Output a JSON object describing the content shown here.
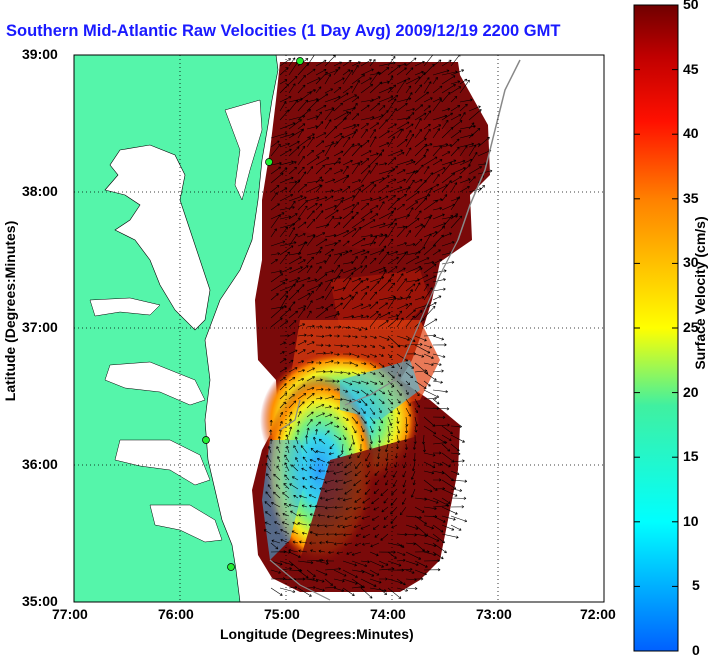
{
  "title": "Southern Mid-Atlantic Raw Velocities (1 Day Avg) 2009/12/19 2200 GMT",
  "chart_data": {
    "type": "heatmap",
    "title": "Southern Mid-Atlantic Raw Velocities (1 Day Avg) 2009/12/19 2200 GMT",
    "xlabel": "Longitude (Degrees:Minutes)",
    "ylabel": "Latitude (Degrees:Minutes)",
    "xlim": [
      -77,
      -72
    ],
    "ylim": [
      35,
      39
    ],
    "xticks": [
      "77:00",
      "76:00",
      "75:00",
      "74:00",
      "73:00",
      "72:00"
    ],
    "yticks": [
      "35:00",
      "36:00",
      "37:00",
      "38:00",
      "39:00"
    ],
    "grid": true,
    "colorbar": {
      "label": "Surface Velocity (cm/s)",
      "range": [
        0,
        50
      ],
      "ticks": [
        "0",
        "5",
        "10",
        "15",
        "20",
        "25",
        "30",
        "35",
        "40",
        "45",
        "50"
      ]
    },
    "land_color": "#55f5aa",
    "vector_color": "#000000"
  }
}
